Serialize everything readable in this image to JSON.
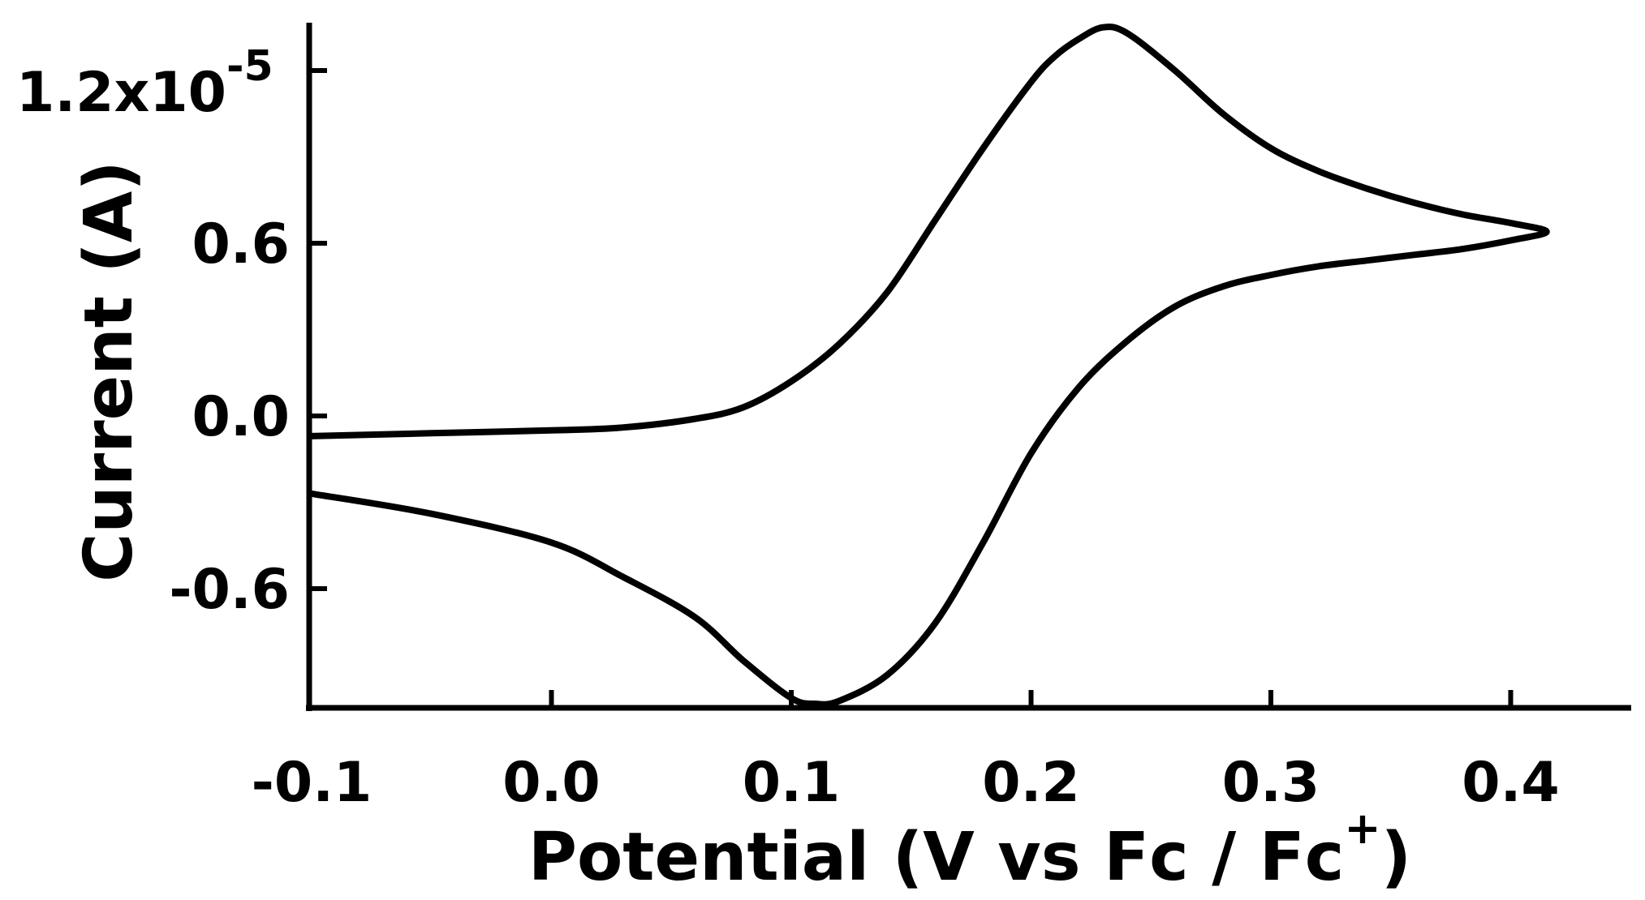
{
  "chart_data": {
    "type": "line",
    "title": "",
    "xlabel": "Potential (V vs Fc / Fc+)",
    "xlabel_main": "Potential (V vs Fc / Fc",
    "xlabel_sup": "+",
    "xlabel_close": ")",
    "ylabel": "Current (A)",
    "y_multiplier_label": "1.2x10",
    "y_multiplier_exp": "-5",
    "xlim": [
      -0.1,
      0.45
    ],
    "ylim": [
      -1.02,
      1.35
    ],
    "y_unit_scale": "1e-5",
    "x_ticks": [
      {
        "value": -0.1,
        "label": "-0.1"
      },
      {
        "value": 0.0,
        "label": "0.0"
      },
      {
        "value": 0.1,
        "label": "0.1"
      },
      {
        "value": 0.2,
        "label": "0.2"
      },
      {
        "value": 0.3,
        "label": "0.3"
      },
      {
        "value": 0.4,
        "label": "0.4"
      }
    ],
    "y_ticks": [
      {
        "value": 1.2,
        "label": ""
      },
      {
        "value": 0.6,
        "label": "0.6"
      },
      {
        "value": 0.0,
        "label": "0.0"
      },
      {
        "value": -0.6,
        "label": "-0.6"
      }
    ],
    "grid": false,
    "legend": "none",
    "series": [
      {
        "x": [
          -0.1,
          -0.05,
          0.0,
          0.03,
          0.06,
          0.08,
          0.1,
          0.12,
          0.14,
          0.16,
          0.18,
          0.2,
          0.21,
          0.22,
          0.23,
          0.24,
          0.26,
          0.28,
          0.3,
          0.32,
          0.34,
          0.36,
          0.38,
          0.4,
          0.415,
          0.4,
          0.38,
          0.36,
          0.34,
          0.32,
          0.3,
          0.28,
          0.26,
          0.24,
          0.22,
          0.2,
          0.18,
          0.16,
          0.14,
          0.12,
          0.11,
          0.1,
          0.08,
          0.06,
          0.03,
          0.0,
          -0.05,
          -0.1
        ],
        "y": [
          -0.07,
          -0.06,
          -0.05,
          -0.04,
          -0.01,
          0.03,
          0.12,
          0.25,
          0.43,
          0.68,
          0.93,
          1.16,
          1.25,
          1.31,
          1.35,
          1.33,
          1.2,
          1.05,
          0.93,
          0.85,
          0.79,
          0.74,
          0.7,
          0.67,
          0.64,
          0.61,
          0.58,
          0.56,
          0.54,
          0.52,
          0.49,
          0.45,
          0.38,
          0.26,
          0.1,
          -0.13,
          -0.44,
          -0.72,
          -0.9,
          -0.99,
          -1.0,
          -0.98,
          -0.85,
          -0.7,
          -0.56,
          -0.44,
          -0.34,
          -0.27
        ],
        "color": "#000000"
      }
    ]
  }
}
